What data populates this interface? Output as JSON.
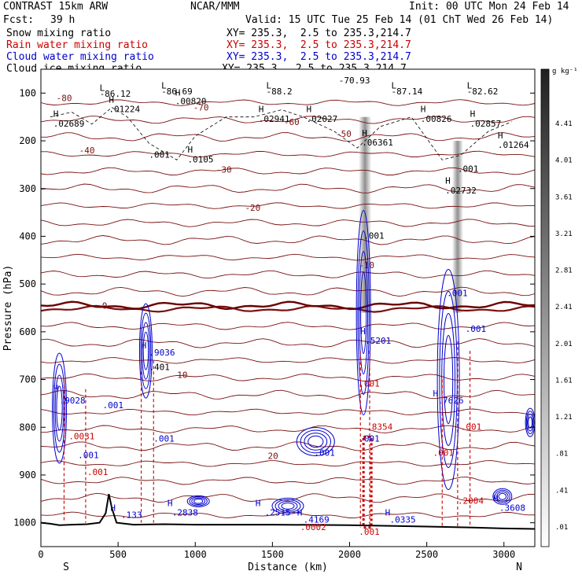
{
  "header": {
    "model": "CONTRAST 15km ARW",
    "agency": "NCAR/MMM",
    "init": "Init: 00 UTC Mon 24 Feb 14",
    "fcst_label": "Fcst:",
    "fcst_value": "39 h",
    "valid": "Valid: 15 UTC Tue 25 Feb 14 (01 ChT Wed 26 Feb 14)"
  },
  "fields": [
    {
      "name": "Snow mixing ratio",
      "xy": "XY= 235.3,  2.5 to 235.3,214.7",
      "color": "#000000"
    },
    {
      "name": "Rain water mixing ratio",
      "xy": "XY= 235.3,  2.5 to 235.3,214.7",
      "color": "#cc0000"
    },
    {
      "name": "Cloud water mixing ratio",
      "xy": "XY= 235.3,  2.5 to 235.3,214.7",
      "color": "#0000cc"
    },
    {
      "name": "Cloud ice mixing ratio",
      "xy": "XY= 235.3,  2.5 to 235.3,214.7",
      "color": "#000000"
    }
  ],
  "chart_data": {
    "type": "contour",
    "xlabel": "Distance (km)",
    "ylabel": "Pressure (hPa)",
    "xlim": [
      0,
      3200
    ],
    "ylim": [
      1050,
      50
    ],
    "x_ticks": [
      0,
      500,
      1000,
      1500,
      2000,
      2500,
      3000
    ],
    "y_ticks": [
      100,
      200,
      300,
      400,
      500,
      600,
      700,
      800,
      900,
      1000
    ],
    "endpoints": {
      "left": "S",
      "right": "N"
    },
    "colorbar": {
      "unit": "g kg⁻¹",
      "labels": [
        "4.41",
        "4.01",
        "3.61",
        "3.21",
        "2.81",
        "2.41",
        "2.01",
        "1.61",
        "1.21",
        ".81",
        ".41",
        ".01"
      ]
    },
    "temperature_isotherms": [
      {
        "label": "-80",
        "p": 110
      },
      {
        "label": "-70",
        "p": 130
      },
      {
        "label": "-60",
        "p": 160
      },
      {
        "label": "-50",
        "p": 185
      },
      {
        "label": "-40",
        "p": 220
      },
      {
        "label": "-30",
        "p": 260
      },
      {
        "label": "-20",
        "p": 340
      },
      {
        "label": "-10",
        "p": 460
      },
      {
        "label": "0",
        "p": 545
      },
      {
        "label": "10",
        "p": 690
      },
      {
        "label": "20",
        "p": 860
      }
    ],
    "maxima_labels": [
      {
        "text": "L",
        "x": 380,
        "p": 95,
        "color": "#000000"
      },
      {
        "text": "-86.12",
        "x": 380,
        "p": 108,
        "color": "#000000"
      },
      {
        "text": "L",
        "x": 780,
        "p": 90,
        "color": "#000000"
      },
      {
        "text": "-86.69",
        "x": 780,
        "p": 103,
        "color": "#000000"
      },
      {
        "text": "L",
        "x": 1460,
        "p": 90,
        "color": "#000000"
      },
      {
        "text": "-88.2",
        "x": 1460,
        "p": 103,
        "color": "#000000"
      },
      {
        "text": "-70.93",
        "x": 1930,
        "p": 80,
        "color": "#000000"
      },
      {
        "text": "L",
        "x": 2270,
        "p": 90,
        "color": "#000000"
      },
      {
        "text": "-87.14",
        "x": 2270,
        "p": 103,
        "color": "#000000"
      },
      {
        "text": "L",
        "x": 2760,
        "p": 90,
        "color": "#000000"
      },
      {
        "text": "-82.62",
        "x": 2760,
        "p": 103,
        "color": "#000000"
      },
      {
        "text": "H",
        "x": 80,
        "p": 150,
        "color": "#000000"
      },
      {
        "text": ".02689",
        "x": 80,
        "p": 170,
        "color": "#000000"
      },
      {
        "text": "H",
        "x": 440,
        "p": 120,
        "color": "#000000"
      },
      {
        "text": ".01224",
        "x": 440,
        "p": 140,
        "color": "#000000"
      },
      {
        "text": "H",
        "x": 870,
        "p": 105,
        "color": "#000000"
      },
      {
        "text": ".00820",
        "x": 870,
        "p": 123,
        "color": "#000000"
      },
      {
        "text": "H",
        "x": 1410,
        "p": 140,
        "color": "#000000"
      },
      {
        "text": ".02941",
        "x": 1410,
        "p": 160,
        "color": "#000000"
      },
      {
        "text": "H",
        "x": 1720,
        "p": 140,
        "color": "#000000"
      },
      {
        "text": ".02027",
        "x": 1720,
        "p": 160,
        "color": "#000000"
      },
      {
        "text": "H",
        "x": 2080,
        "p": 190,
        "color": "#000000"
      },
      {
        "text": ".06361",
        "x": 2080,
        "p": 210,
        "color": "#000000"
      },
      {
        "text": "H",
        "x": 2460,
        "p": 140,
        "color": "#000000"
      },
      {
        "text": ".00826",
        "x": 2460,
        "p": 160,
        "color": "#000000"
      },
      {
        "text": "H",
        "x": 2780,
        "p": 150,
        "color": "#000000"
      },
      {
        "text": ".02857",
        "x": 2780,
        "p": 170,
        "color": "#000000"
      },
      {
        "text": "H",
        "x": 2960,
        "p": 195,
        "color": "#000000"
      },
      {
        "text": ".01264",
        "x": 2960,
        "p": 215,
        "color": "#000000"
      },
      {
        "text": "H",
        "x": 950,
        "p": 225,
        "color": "#000000"
      },
      {
        "text": ".0105",
        "x": 950,
        "p": 245,
        "color": "#000000"
      },
      {
        "text": "H",
        "x": 2620,
        "p": 290,
        "color": "#000000"
      },
      {
        "text": ".02732",
        "x": 2620,
        "p": 310,
        "color": "#000000"
      },
      {
        "text": ".001",
        "x": 700,
        "p": 235,
        "color": "#000000"
      },
      {
        "text": ".001",
        "x": 2090,
        "p": 405,
        "color": "#000000"
      },
      {
        "text": ".001",
        "x": 2700,
        "p": 265,
        "color": "#000000"
      },
      {
        "text": "H",
        "x": 650,
        "p": 635,
        "color": "#0000cc"
      },
      {
        "text": ".9036",
        "x": 700,
        "p": 650,
        "color": "#0000cc"
      },
      {
        "text": ".401",
        "x": 700,
        "p": 680,
        "color": "#000000"
      },
      {
        "text": "H",
        "x": 80,
        "p": 725,
        "color": "#0000cc"
      },
      {
        "text": ".9028",
        "x": 120,
        "p": 750,
        "color": "#0000cc"
      },
      {
        "text": "H",
        "x": 2070,
        "p": 605,
        "color": "#0000cc"
      },
      {
        "text": ".5201",
        "x": 2100,
        "p": 625,
        "color": "#0000cc"
      },
      {
        "text": "H",
        "x": 2540,
        "p": 735,
        "color": "#0000cc"
      },
      {
        "text": ".7626",
        "x": 2570,
        "p": 750,
        "color": "#0000cc"
      },
      {
        "text": ".001",
        "x": 400,
        "p": 760,
        "color": "#0000cc"
      },
      {
        "text": ".001",
        "x": 240,
        "p": 865,
        "color": "#0000cc"
      },
      {
        "text": ".001",
        "x": 730,
        "p": 830,
        "color": "#0000cc"
      },
      {
        "text": ".001",
        "x": 1770,
        "p": 860,
        "color": "#0000cc"
      },
      {
        "text": ".001",
        "x": 2630,
        "p": 525,
        "color": "#0000cc"
      },
      {
        "text": ".001",
        "x": 2750,
        "p": 600,
        "color": "#0000cc"
      },
      {
        "text": ".001",
        "x": 2060,
        "p": 830,
        "color": "#0000cc"
      },
      {
        "text": "H",
        "x": 450,
        "p": 975,
        "color": "#0000cc"
      },
      {
        "text": ".133",
        "x": 520,
        "p": 990,
        "color": "#0000cc"
      },
      {
        "text": "H",
        "x": 820,
        "p": 965,
        "color": "#0000cc"
      },
      {
        "text": ".2838",
        "x": 850,
        "p": 985,
        "color": "#0000cc"
      },
      {
        "text": "H",
        "x": 1390,
        "p": 965,
        "color": "#0000cc"
      },
      {
        "text": ".2515",
        "x": 1450,
        "p": 985,
        "color": "#0000cc"
      },
      {
        "text": "H",
        "x": 1660,
        "p": 985,
        "color": "#0000cc"
      },
      {
        "text": ".4169",
        "x": 1700,
        "p": 1000,
        "color": "#0000cc"
      },
      {
        "text": "H",
        "x": 2230,
        "p": 985,
        "color": "#0000cc"
      },
      {
        "text": ".0335",
        "x": 2260,
        "p": 1000,
        "color": "#0000cc"
      },
      {
        "text": "H",
        "x": 2930,
        "p": 955,
        "color": "#0000cc"
      },
      {
        "text": ".3608",
        "x": 2970,
        "p": 975,
        "color": "#0000cc"
      },
      {
        "text": ".0002",
        "x": 1680,
        "p": 1015,
        "color": "#cc0000"
      },
      {
        "text": ".0031",
        "x": 180,
        "p": 825,
        "color": "#cc0000"
      },
      {
        "text": ".001",
        "x": 300,
        "p": 900,
        "color": "#cc0000"
      },
      {
        "text": ".001",
        "x": 2060,
        "p": 715,
        "color": "#cc0000"
      },
      {
        "text": ".8354",
        "x": 2110,
        "p": 805,
        "color": "#cc0000"
      },
      {
        "text": ".2004",
        "x": 2700,
        "p": 960,
        "color": "#cc0000"
      },
      {
        "text": ".001",
        "x": 2060,
        "p": 1025,
        "color": "#cc0000"
      },
      {
        "text": ".001",
        "x": 2540,
        "p": 860,
        "color": "#cc0000"
      },
      {
        "text": ".001",
        "x": 2720,
        "p": 805,
        "color": "#cc0000"
      }
    ]
  }
}
